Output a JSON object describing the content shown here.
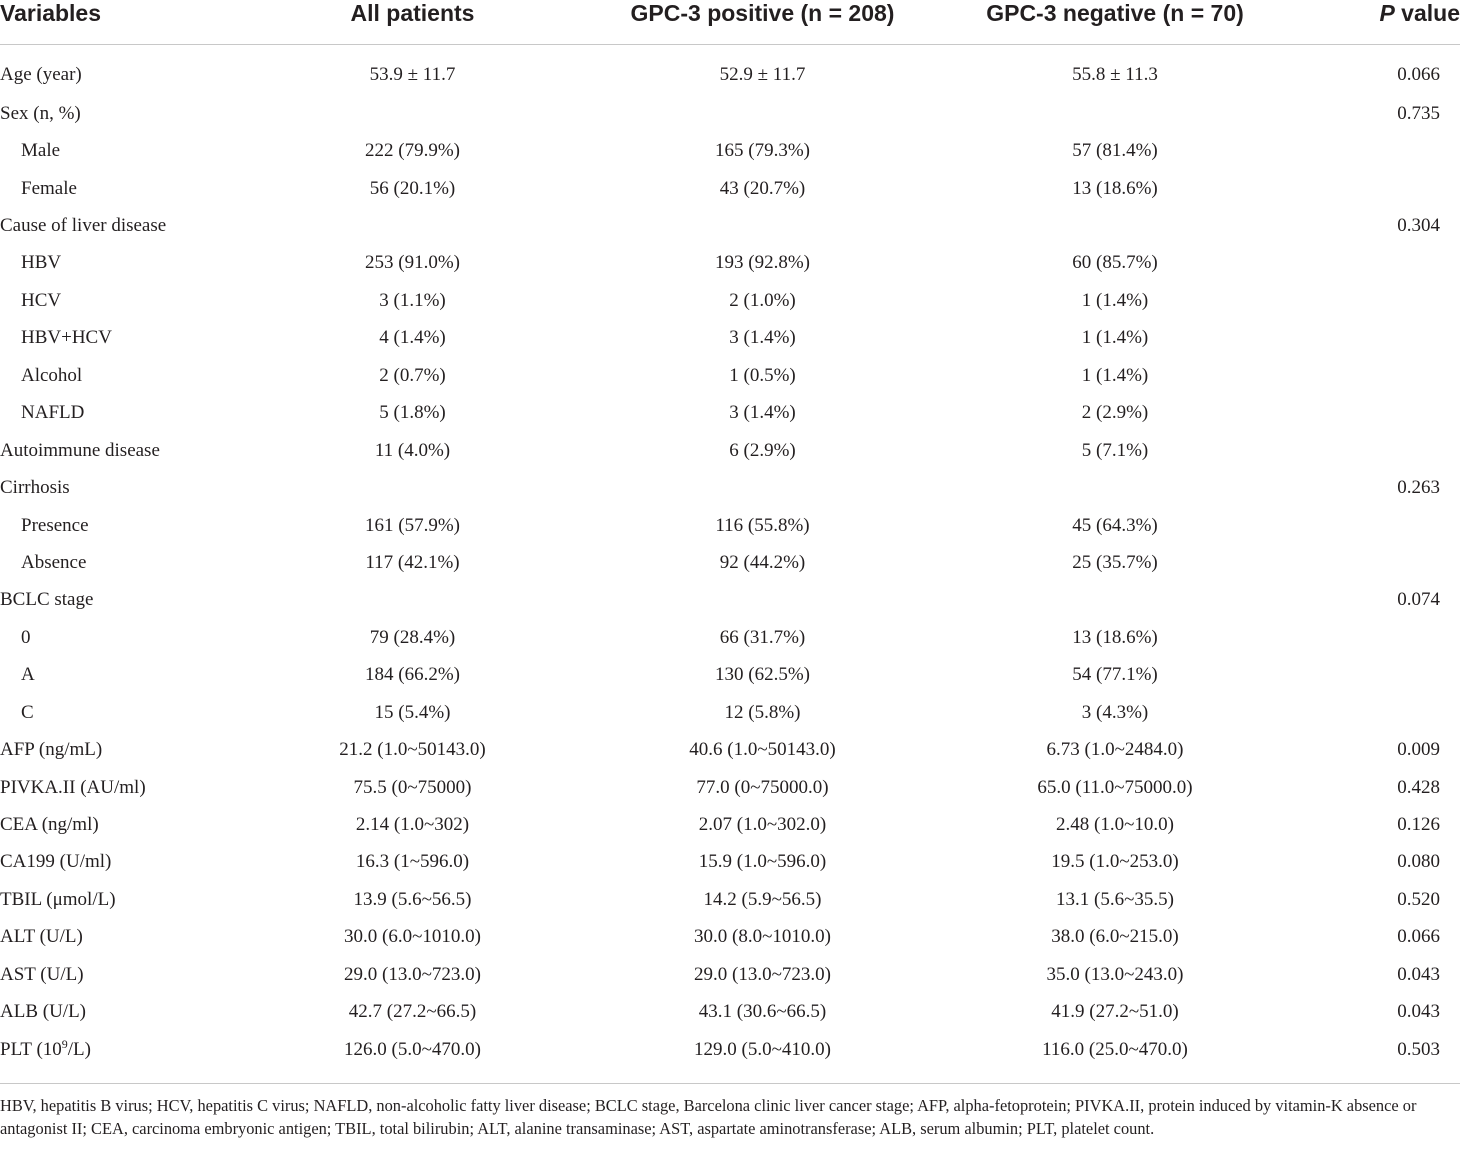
{
  "table": {
    "headers": {
      "variables": "Variables",
      "all_patients": "All patients",
      "gpc3_positive": "GPC-3 positive (n = 208)",
      "gpc3_negative": "GPC-3 negative (n = 70)",
      "p_value_italic": "P",
      "p_value_rest": " value"
    },
    "rows": [
      {
        "label": "Age (year)",
        "all": "53.9 ± 11.7",
        "pos": "52.9 ± 11.7",
        "neg": "55.8 ± 11.3",
        "p": "0.066"
      },
      {
        "label": "Sex (n, %)",
        "all": "",
        "pos": "",
        "neg": "",
        "p": "0.735"
      },
      {
        "label": "Male",
        "all": "222 (79.9%)",
        "pos": "165 (79.3%)",
        "neg": "57 (81.4%)",
        "p": ""
      },
      {
        "label": "Female",
        "all": "56 (20.1%)",
        "pos": "43 (20.7%)",
        "neg": "13 (18.6%)",
        "p": ""
      },
      {
        "label": "Cause of liver disease",
        "all": "",
        "pos": "",
        "neg": "",
        "p": "0.304"
      },
      {
        "label": "HBV",
        "all": "253 (91.0%)",
        "pos": "193 (92.8%)",
        "neg": "60 (85.7%)",
        "p": ""
      },
      {
        "label": "HCV",
        "all": "3 (1.1%)",
        "pos": "2 (1.0%)",
        "neg": "1 (1.4%)",
        "p": ""
      },
      {
        "label": "HBV+HCV",
        "all": "4 (1.4%)",
        "pos": "3 (1.4%)",
        "neg": "1 (1.4%)",
        "p": ""
      },
      {
        "label": "Alcohol",
        "all": "2 (0.7%)",
        "pos": "1 (0.5%)",
        "neg": "1 (1.4%)",
        "p": ""
      },
      {
        "label": "NAFLD",
        "all": "5 (1.8%)",
        "pos": "3 (1.4%)",
        "neg": "2 (2.9%)",
        "p": ""
      },
      {
        "label": "Autoimmune disease",
        "all": "11 (4.0%)",
        "pos": "6 (2.9%)",
        "neg": "5 (7.1%)",
        "p": ""
      },
      {
        "label": "Cirrhosis",
        "all": "",
        "pos": "",
        "neg": "",
        "p": "0.263"
      },
      {
        "label": "Presence",
        "all": "161 (57.9%)",
        "pos": "116 (55.8%)",
        "neg": "45 (64.3%)",
        "p": ""
      },
      {
        "label": "Absence",
        "all": "117 (42.1%)",
        "pos": "92 (44.2%)",
        "neg": "25 (35.7%)",
        "p": ""
      },
      {
        "label": "BCLC stage",
        "all": "",
        "pos": "",
        "neg": "",
        "p": "0.074"
      },
      {
        "label": "0",
        "all": "79 (28.4%)",
        "pos": "66 (31.7%)",
        "neg": "13 (18.6%)",
        "p": ""
      },
      {
        "label": "A",
        "all": "184 (66.2%)",
        "pos": "130 (62.5%)",
        "neg": "54 (77.1%)",
        "p": ""
      },
      {
        "label": "C",
        "all": "15 (5.4%)",
        "pos": "12 (5.8%)",
        "neg": "3 (4.3%)",
        "p": ""
      },
      {
        "label": "AFP (ng/mL)",
        "all": "21.2 (1.0~50143.0)",
        "pos": "40.6 (1.0~50143.0)",
        "neg": "6.73 (1.0~2484.0)",
        "p": "0.009"
      },
      {
        "label": "PIVKA.II (AU/ml)",
        "all": "75.5 (0~75000)",
        "pos": "77.0 (0~75000.0)",
        "neg": "65.0 (11.0~75000.0)",
        "p": "0.428"
      },
      {
        "label": "CEA (ng/ml)",
        "all": "2.14 (1.0~302)",
        "pos": "2.07 (1.0~302.0)",
        "neg": "2.48 (1.0~10.0)",
        "p": "0.126"
      },
      {
        "label": "CA199 (U/ml)",
        "all": "16.3 (1~596.0)",
        "pos": "15.9 (1.0~596.0)",
        "neg": "19.5 (1.0~253.0)",
        "p": "0.080"
      },
      {
        "label": "TBIL (μmol/L)",
        "all": "13.9 (5.6~56.5)",
        "pos": "14.2 (5.9~56.5)",
        "neg": "13.1 (5.6~35.5)",
        "p": "0.520"
      },
      {
        "label": "ALT (U/L)",
        "all": "30.0 (6.0~1010.0)",
        "pos": "30.0 (8.0~1010.0)",
        "neg": "38.0 (6.0~215.0)",
        "p": "0.066"
      },
      {
        "label": "AST (U/L)",
        "all": "29.0 (13.0~723.0)",
        "pos": "29.0 (13.0~723.0)",
        "neg": "35.0 (13.0~243.0)",
        "p": "0.043"
      },
      {
        "label": "ALB (U/L)",
        "all": "42.7 (27.2~66.5)",
        "pos": "43.1 (30.6~66.5)",
        "neg": "41.9 (27.2~51.0)",
        "p": "0.043"
      }
    ],
    "last_row": {
      "label_pre": "PLT (10",
      "label_sup": "9",
      "label_post": "/L)",
      "all": "126.0 (5.0~470.0)",
      "pos": "129.0 (5.0~410.0)",
      "neg": "116.0 (25.0~470.0)",
      "p": "0.503"
    }
  },
  "footnote": "HBV, hepatitis B virus; HCV, hepatitis C virus; NAFLD, non-alcoholic fatty liver disease; BCLC stage, Barcelona clinic liver cancer stage; AFP, alpha-fetoprotein; PIVKA.II, protein induced by vitamin-K absence or antagonist II; CEA, carcinoma embryonic antigen; TBIL, total bilirubin; ALT, alanine transaminase; AST, aspartate aminotransferase; ALB, serum albumin; PLT, platelet count."
}
